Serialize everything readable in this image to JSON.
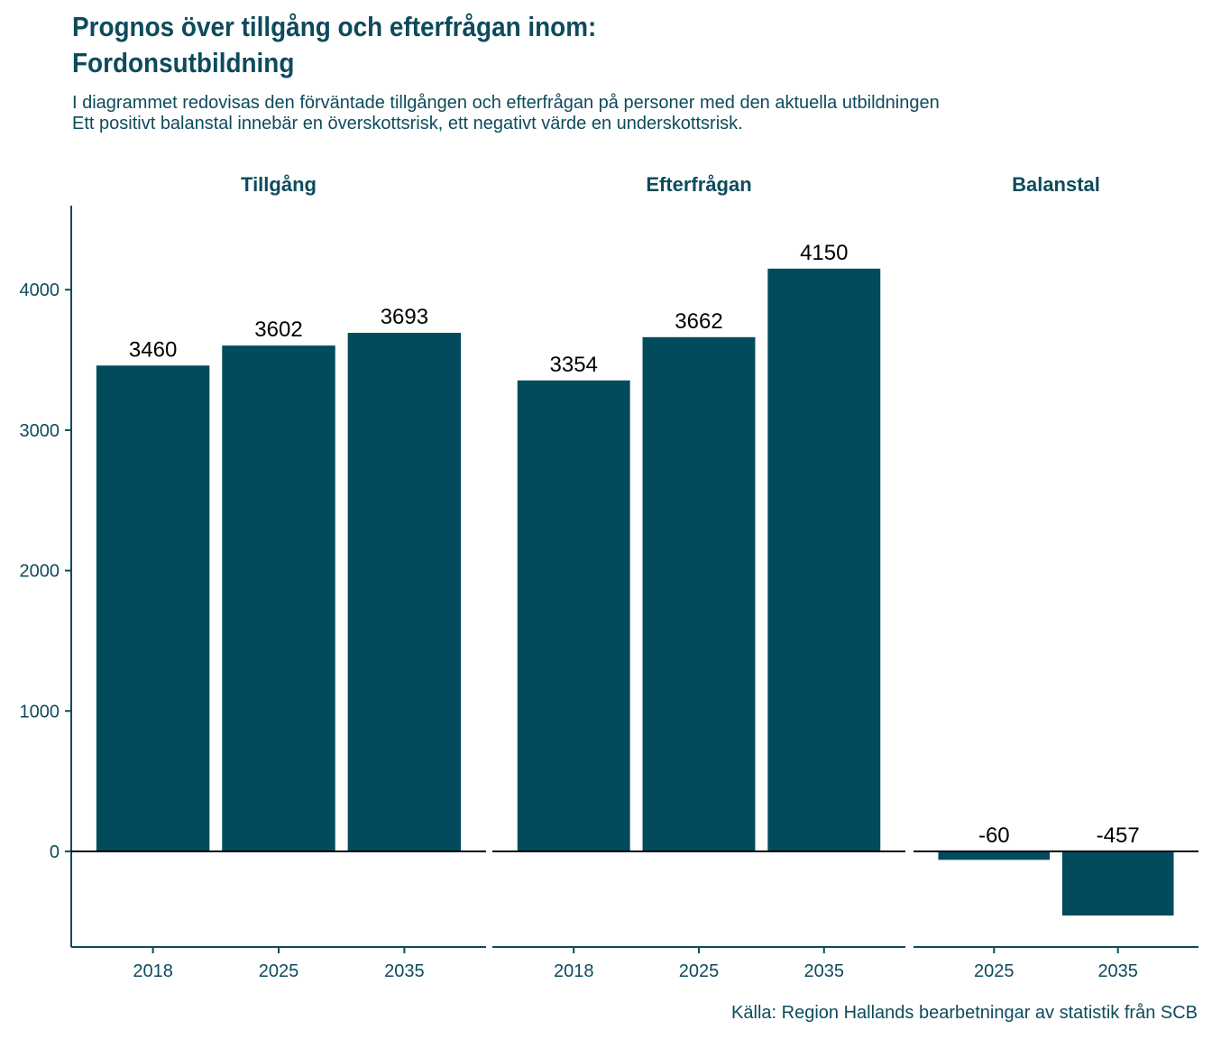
{
  "chart_data": {
    "type": "bar",
    "title_line1": "Prognos över tillgång och efterfrågan inom:",
    "title_line2": "Fordonsutbildning",
    "subtitle_line1": "I diagrammet redovisas den förväntade tillgången och efterfrågan på personer med den aktuella utbildningen",
    "subtitle_line2": "Ett positivt balanstal innebär en överskottsrisk, ett negativt värde en underskottsrisk.",
    "caption": "Källa: Region Hallands bearbetningar av statistik från SCB",
    "ylim": [
      -680,
      4600
    ],
    "yticks": [
      0,
      1000,
      2000,
      3000,
      4000
    ],
    "grid": false,
    "bar_color": "#014b5d",
    "axis_color": "#0d4b5c",
    "facets": [
      {
        "name": "Tillgång",
        "categories": [
          "2018",
          "2025",
          "2035"
        ],
        "values": [
          3460,
          3602,
          3693
        ]
      },
      {
        "name": "Efterfrågan",
        "categories": [
          "2018",
          "2025",
          "2035"
        ],
        "values": [
          3354,
          3662,
          4150
        ]
      },
      {
        "name": "Balanstal",
        "categories": [
          "2025",
          "2035"
        ],
        "values": [
          -60,
          -457
        ]
      }
    ]
  }
}
